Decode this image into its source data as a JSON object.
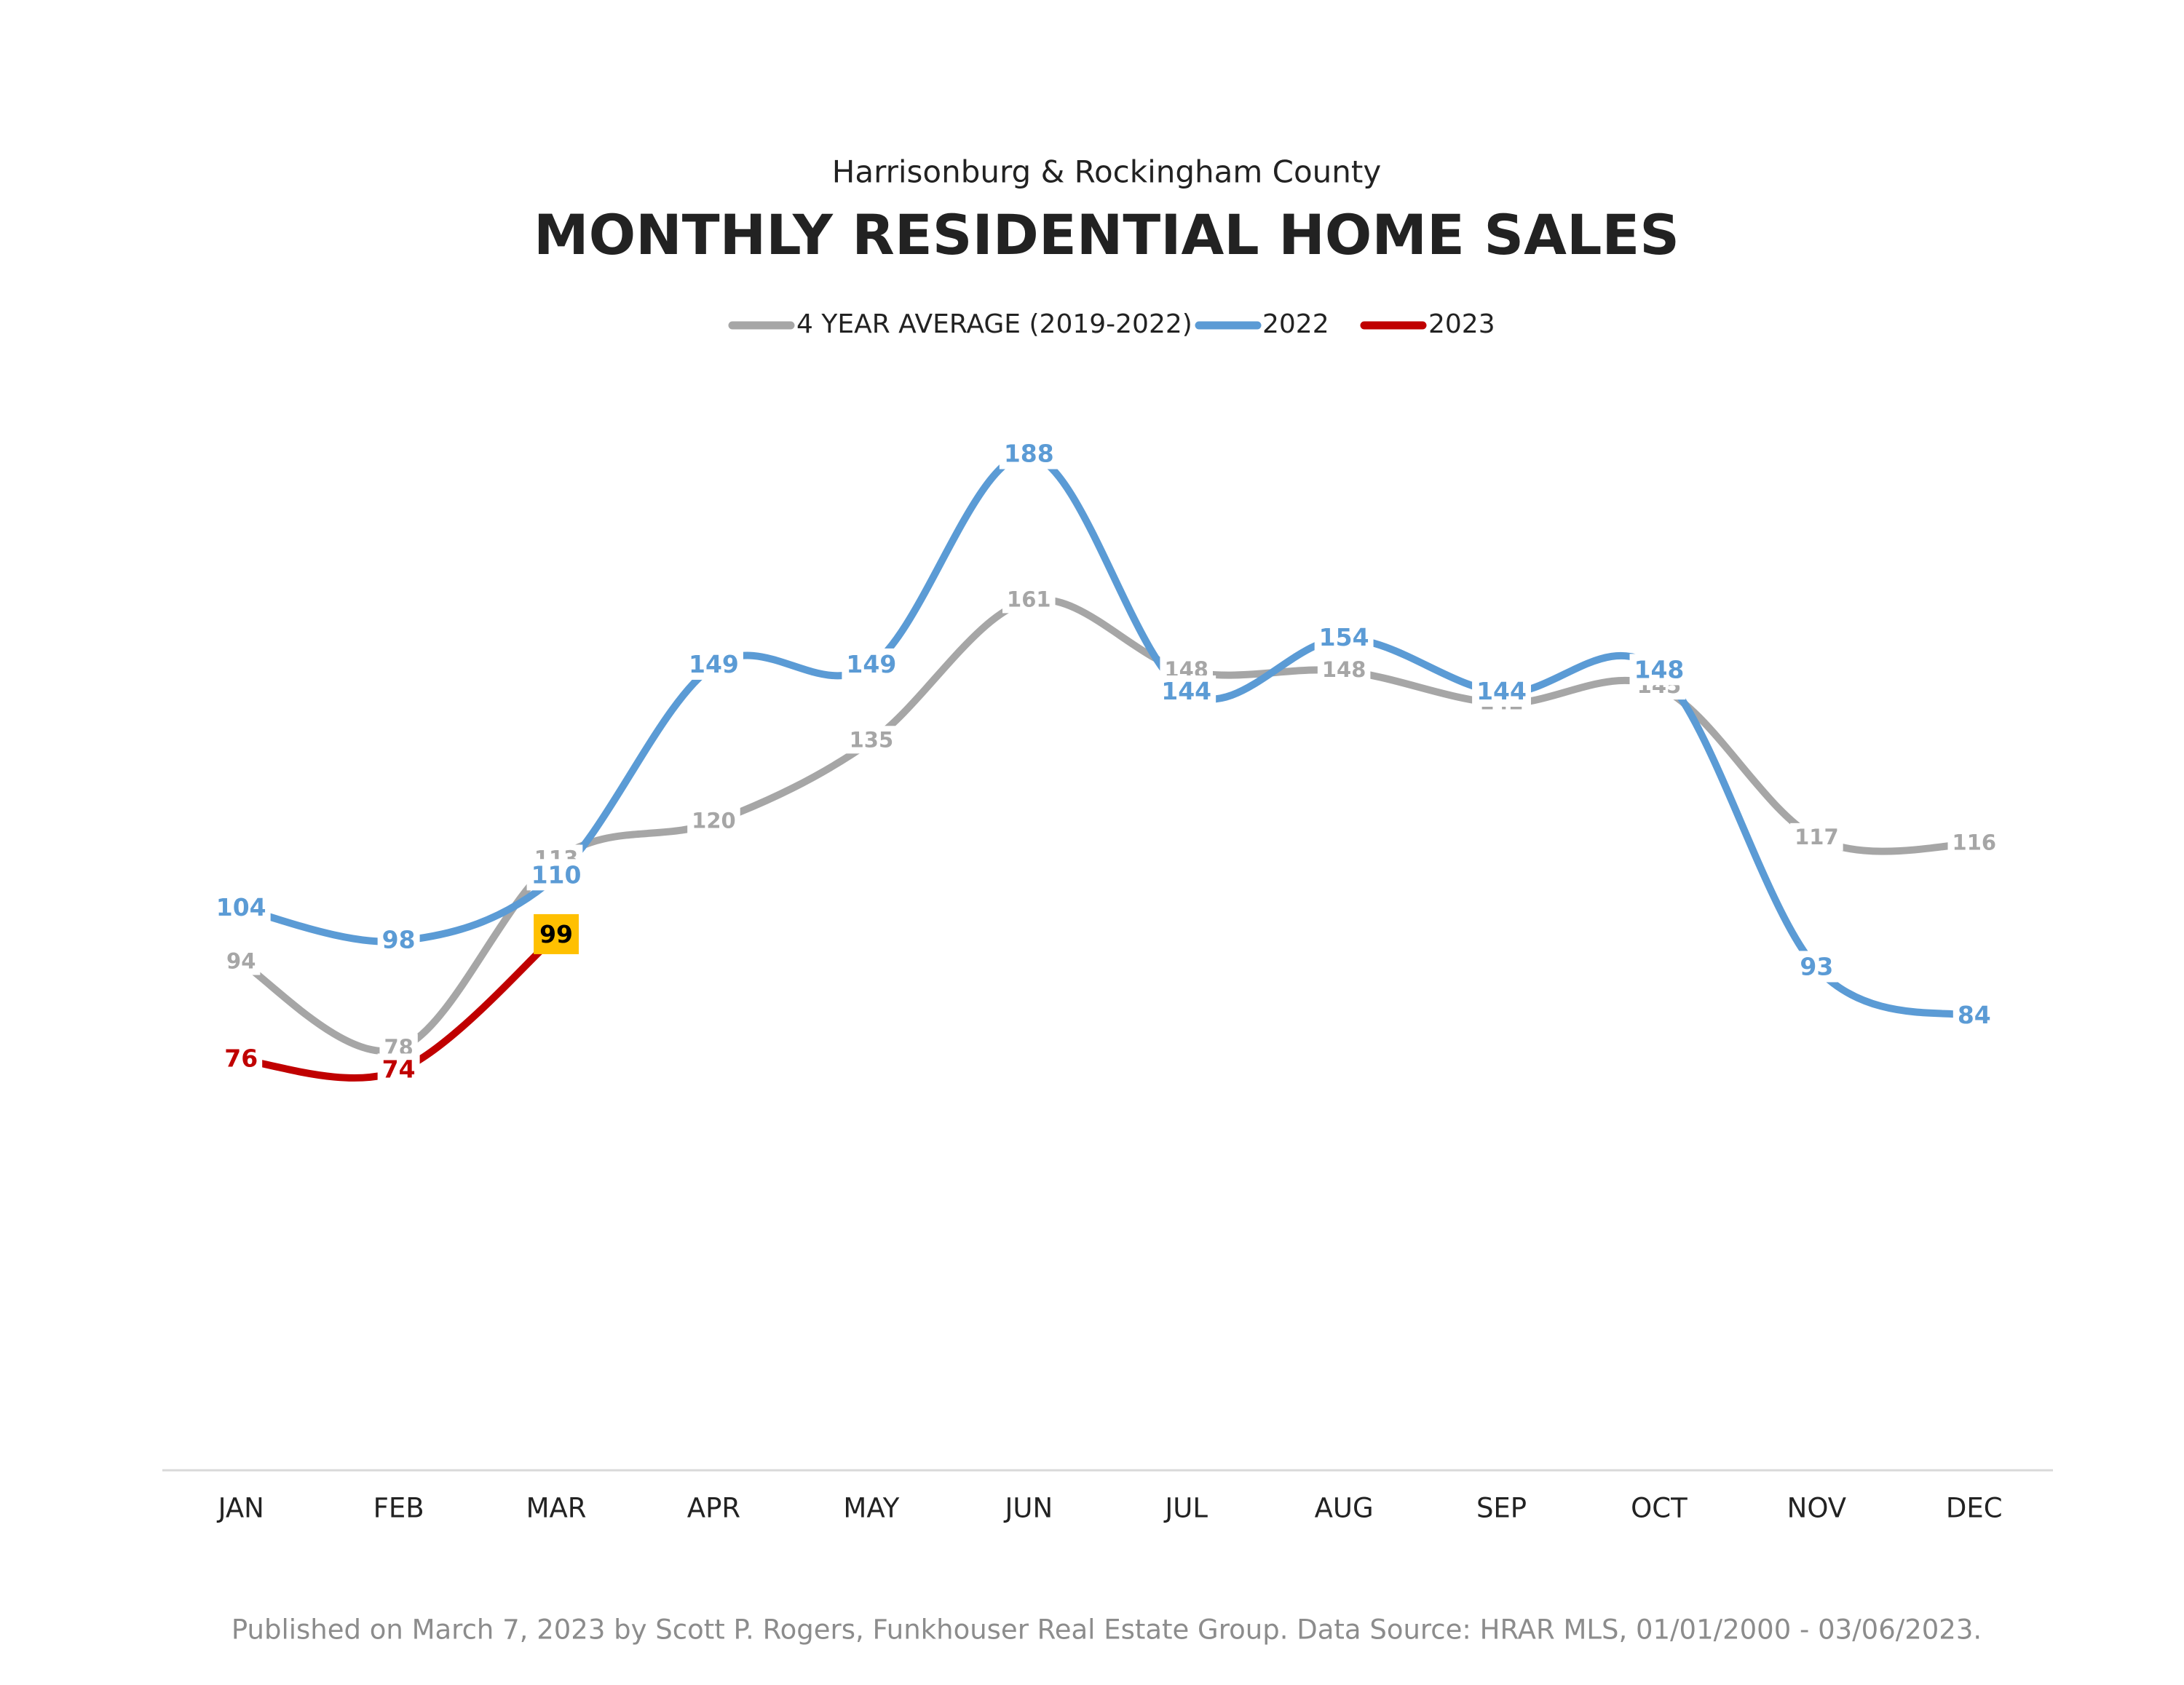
{
  "chart_data": {
    "type": "line",
    "subtitle": "Harrisonburg & Rockingham County",
    "title": "MONTHLY RESIDENTIAL HOME SALES",
    "categories": [
      "JAN",
      "FEB",
      "MAR",
      "APR",
      "MAY",
      "JUN",
      "JUL",
      "AUG",
      "SEP",
      "OCT",
      "NOV",
      "DEC"
    ],
    "series": [
      {
        "name": "4 YEAR AVERAGE (2019-2022)",
        "color": "#a6a6a6",
        "values": [
          94,
          78,
          113,
          120,
          135,
          161,
          148,
          148,
          142,
          145,
          117,
          116
        ]
      },
      {
        "name": "2022",
        "color": "#5b9bd5",
        "values": [
          104,
          98,
          110,
          149,
          149,
          188,
          144,
          154,
          144,
          148,
          93,
          84
        ]
      },
      {
        "name": "2023",
        "color": "#c00000",
        "values": [
          76,
          74,
          99,
          null,
          null,
          null,
          null,
          null,
          null,
          null,
          null,
          null
        ]
      }
    ],
    "ylim": [
      0,
      200
    ],
    "yticks": [
      0
    ],
    "legend": "top",
    "footnote": "Published on March 7, 2023 by Scott P. Rogers, Funkhouser Real Estate Group. Data Source: HRAR MLS, 01/01/2000 - 03/06/2023."
  }
}
